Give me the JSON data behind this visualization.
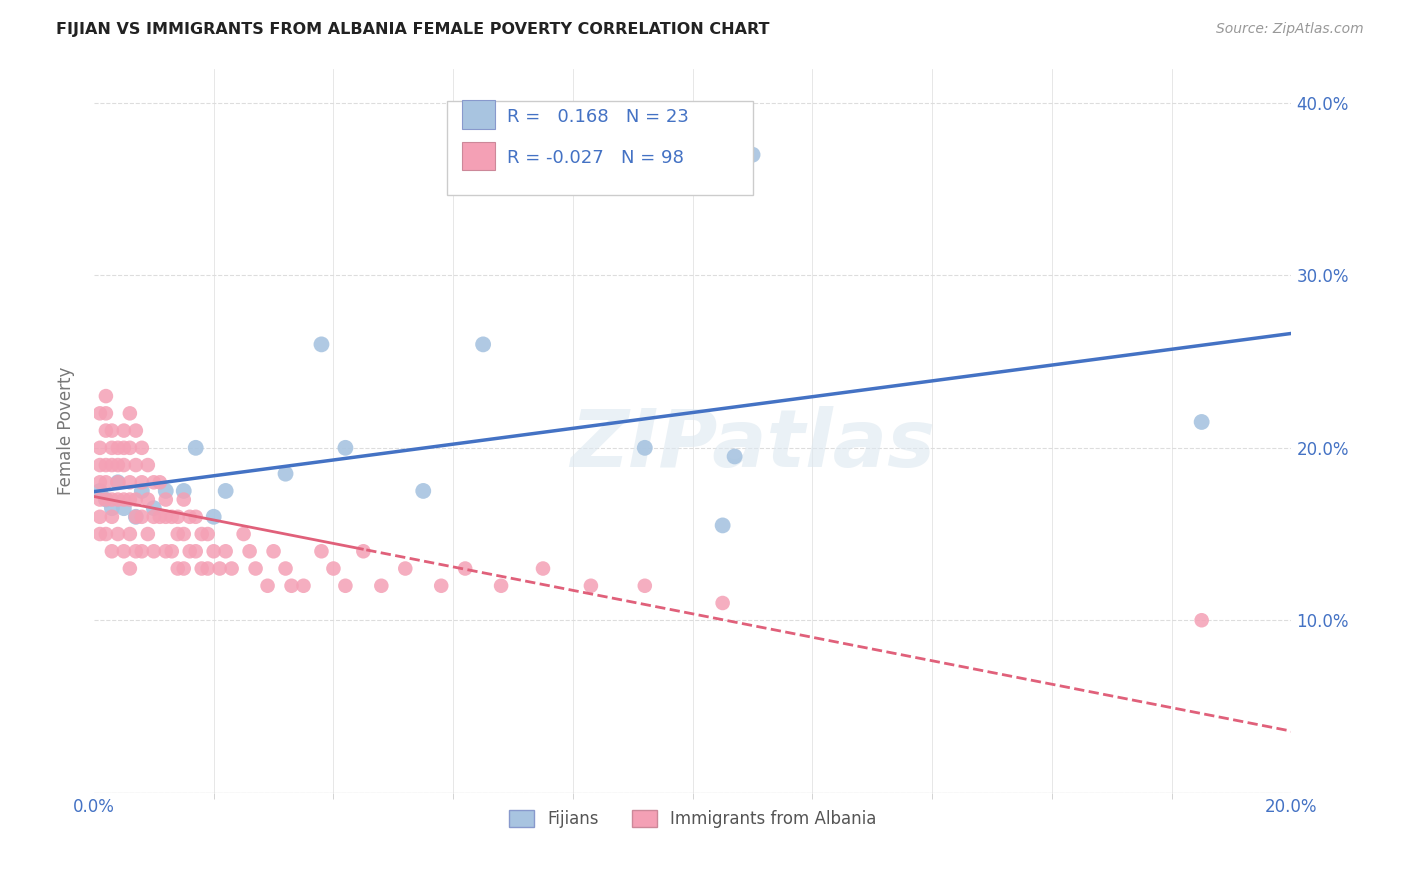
{
  "title": "FIJIAN VS IMMIGRANTS FROM ALBANIA FEMALE POVERTY CORRELATION CHART",
  "source": "Source: ZipAtlas.com",
  "ylabel": "Female Poverty",
  "xlim": [
    0.0,
    0.2
  ],
  "ylim": [
    0.0,
    0.42
  ],
  "fijian_color": "#a8c4e0",
  "albania_color": "#f4a0b5",
  "fijian_line_color": "#4472c4",
  "albania_line_color": "#e0607a",
  "legend_text_color": "#4472c4",
  "fijian_R": 0.168,
  "fijian_N": 23,
  "albania_R": -0.027,
  "albania_N": 98,
  "fijian_x": [
    0.001,
    0.002,
    0.003,
    0.004,
    0.005,
    0.007,
    0.008,
    0.01,
    0.012,
    0.015,
    0.017,
    0.02,
    0.022,
    0.032,
    0.038,
    0.042,
    0.055,
    0.065,
    0.092,
    0.105,
    0.107,
    0.11,
    0.185
  ],
  "fijian_y": [
    0.175,
    0.17,
    0.165,
    0.18,
    0.165,
    0.16,
    0.175,
    0.165,
    0.175,
    0.175,
    0.2,
    0.16,
    0.175,
    0.185,
    0.26,
    0.2,
    0.175,
    0.26,
    0.2,
    0.155,
    0.195,
    0.37,
    0.215
  ],
  "albania_x": [
    0.001,
    0.001,
    0.001,
    0.001,
    0.001,
    0.001,
    0.001,
    0.002,
    0.002,
    0.002,
    0.002,
    0.002,
    0.002,
    0.002,
    0.003,
    0.003,
    0.003,
    0.003,
    0.003,
    0.003,
    0.004,
    0.004,
    0.004,
    0.004,
    0.004,
    0.005,
    0.005,
    0.005,
    0.005,
    0.005,
    0.006,
    0.006,
    0.006,
    0.006,
    0.006,
    0.006,
    0.007,
    0.007,
    0.007,
    0.007,
    0.007,
    0.008,
    0.008,
    0.008,
    0.008,
    0.009,
    0.009,
    0.009,
    0.01,
    0.01,
    0.01,
    0.011,
    0.011,
    0.012,
    0.012,
    0.012,
    0.013,
    0.013,
    0.014,
    0.014,
    0.014,
    0.015,
    0.015,
    0.015,
    0.016,
    0.016,
    0.017,
    0.017,
    0.018,
    0.018,
    0.019,
    0.019,
    0.02,
    0.021,
    0.022,
    0.023,
    0.025,
    0.026,
    0.027,
    0.029,
    0.03,
    0.032,
    0.033,
    0.035,
    0.038,
    0.04,
    0.042,
    0.045,
    0.048,
    0.052,
    0.058,
    0.062,
    0.068,
    0.075,
    0.083,
    0.092,
    0.105,
    0.185
  ],
  "albania_y": [
    0.22,
    0.2,
    0.19,
    0.18,
    0.17,
    0.16,
    0.15,
    0.23,
    0.22,
    0.21,
    0.19,
    0.18,
    0.17,
    0.15,
    0.21,
    0.2,
    0.19,
    0.17,
    0.16,
    0.14,
    0.2,
    0.19,
    0.18,
    0.17,
    0.15,
    0.21,
    0.2,
    0.19,
    0.17,
    0.14,
    0.22,
    0.2,
    0.18,
    0.17,
    0.15,
    0.13,
    0.21,
    0.19,
    0.17,
    0.16,
    0.14,
    0.2,
    0.18,
    0.16,
    0.14,
    0.19,
    0.17,
    0.15,
    0.18,
    0.16,
    0.14,
    0.18,
    0.16,
    0.17,
    0.16,
    0.14,
    0.16,
    0.14,
    0.16,
    0.15,
    0.13,
    0.17,
    0.15,
    0.13,
    0.16,
    0.14,
    0.16,
    0.14,
    0.15,
    0.13,
    0.15,
    0.13,
    0.14,
    0.13,
    0.14,
    0.13,
    0.15,
    0.14,
    0.13,
    0.12,
    0.14,
    0.13,
    0.12,
    0.12,
    0.14,
    0.13,
    0.12,
    0.14,
    0.12,
    0.13,
    0.12,
    0.13,
    0.12,
    0.13,
    0.12,
    0.12,
    0.11,
    0.1
  ],
  "background_color": "#ffffff",
  "grid_color": "#dddddd",
  "watermark_text": "ZIPatlas",
  "xtick_positions": [
    0.0,
    0.2
  ],
  "xtick_labels": [
    "0.0%",
    "20.0%"
  ],
  "yticks": [
    0.0,
    0.1,
    0.2,
    0.3,
    0.4
  ],
  "ytick_labels_right": [
    "",
    "10.0%",
    "20.0%",
    "30.0%",
    "40.0%"
  ]
}
